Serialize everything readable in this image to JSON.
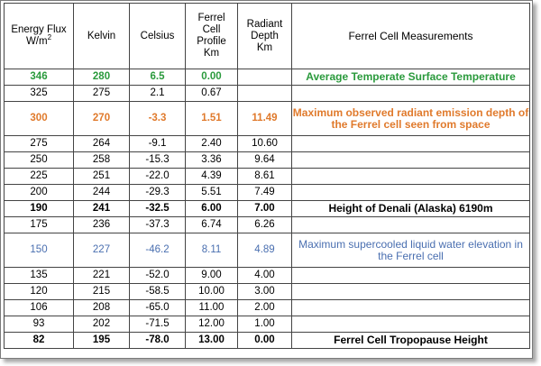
{
  "headers": {
    "energy_flux": "Energy Flux",
    "energy_flux_unit": "W/m",
    "energy_flux_exp": "2",
    "kelvin": "Kelvin",
    "celsius": "Celsius",
    "ferrel_profile_l1": "Ferrel",
    "ferrel_profile_l2": "Cell",
    "ferrel_profile_l3": "Profile",
    "ferrel_profile_l4": "Km",
    "radiant_depth_l1": "Radiant",
    "radiant_depth_l2": "Depth",
    "radiant_depth_l3": "Km",
    "measurements": "Ferrel Cell Measurements"
  },
  "rows": [
    {
      "flux": "346",
      "kelvin": "280",
      "celsius": "6.5",
      "profile": "0.00",
      "depth": "",
      "note": "Average Temperate Surface Temperature",
      "style": "green bold"
    },
    {
      "flux": "325",
      "kelvin": "275",
      "celsius": "2.1",
      "profile": "0.67",
      "depth": "",
      "note": "",
      "style": ""
    },
    {
      "flux": "300",
      "kelvin": "270",
      "celsius": "-3.3",
      "profile": "1.51",
      "depth": "11.49",
      "note": "Maximum observed radiant emission depth of the Ferrel cell seen from space",
      "style": "orange bold"
    },
    {
      "flux": "275",
      "kelvin": "264",
      "celsius": "-9.1",
      "profile": "2.40",
      "depth": "10.60",
      "note": "",
      "style": ""
    },
    {
      "flux": "250",
      "kelvin": "258",
      "celsius": "-15.3",
      "profile": "3.36",
      "depth": "9.64",
      "note": "",
      "style": ""
    },
    {
      "flux": "225",
      "kelvin": "251",
      "celsius": "-22.0",
      "profile": "4.39",
      "depth": "8.61",
      "note": "",
      "style": ""
    },
    {
      "flux": "200",
      "kelvin": "244",
      "celsius": "-29.3",
      "profile": "5.51",
      "depth": "7.49",
      "note": "",
      "style": ""
    },
    {
      "flux": "190",
      "kelvin": "241",
      "celsius": "-32.5",
      "profile": "6.00",
      "depth": "7.00",
      "note": "Height of Denali (Alaska) 6190m",
      "style": "bold"
    },
    {
      "flux": "175",
      "kelvin": "236",
      "celsius": "-37.3",
      "profile": "6.74",
      "depth": "6.26",
      "note": "",
      "style": ""
    },
    {
      "flux": "150",
      "kelvin": "227",
      "celsius": "-46.2",
      "profile": "8.11",
      "depth": "4.89",
      "note": "Maximum supercooled liquid water elevation in the Ferrel cell",
      "style": "blue"
    },
    {
      "flux": "135",
      "kelvin": "221",
      "celsius": "-52.0",
      "profile": "9.00",
      "depth": "4.00",
      "note": "",
      "style": ""
    },
    {
      "flux": "120",
      "kelvin": "215",
      "celsius": "-58.5",
      "profile": "10.00",
      "depth": "3.00",
      "note": "",
      "style": ""
    },
    {
      "flux": "106",
      "kelvin": "208",
      "celsius": "-65.0",
      "profile": "11.00",
      "depth": "2.00",
      "note": "",
      "style": ""
    },
    {
      "flux": "93",
      "kelvin": "202",
      "celsius": "-71.5",
      "profile": "12.00",
      "depth": "1.00",
      "note": "",
      "style": ""
    },
    {
      "flux": "82",
      "kelvin": "195",
      "celsius": "-78.0",
      "profile": "13.00",
      "depth": "0.00",
      "note": "Ferrel Cell Tropopause Height",
      "style": "bold"
    }
  ]
}
